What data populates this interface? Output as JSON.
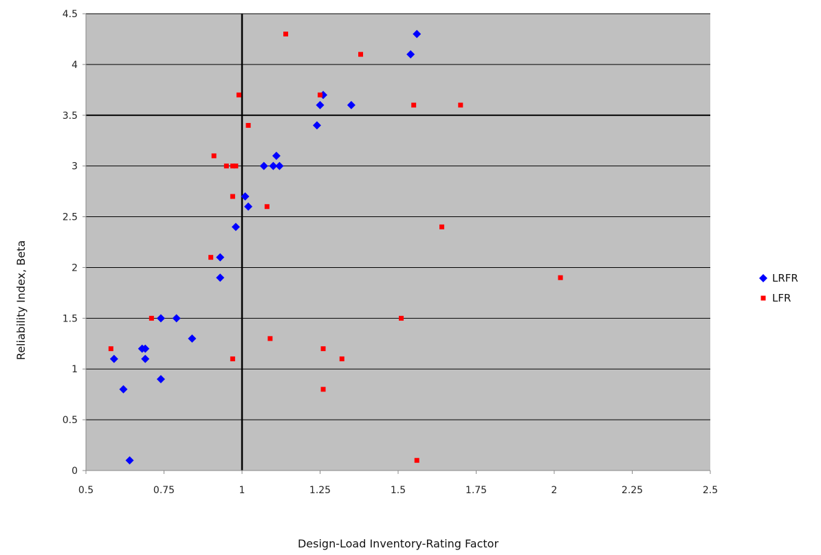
{
  "chart_data": {
    "type": "scatter",
    "title": "",
    "xlabel": "Design-Load Inventory-Rating Factor",
    "ylabel": "Reliability Index, Beta",
    "xlim": [
      0.5,
      2.5
    ],
    "ylim": [
      0,
      4.5
    ],
    "x_ticks": [
      "0.5",
      "0.75",
      "1",
      "1.25",
      "1.5",
      "1.75",
      "2",
      "2.25",
      "2.5"
    ],
    "y_ticks": [
      "0",
      "0.5",
      "1",
      "1.5",
      "2",
      "2.5",
      "3",
      "3.5",
      "4",
      "4.5"
    ],
    "grid": "horizontal",
    "reference_lines": {
      "x": 1,
      "y": 3.5
    },
    "legend_position": "right",
    "plot_background": "#c0c0c0",
    "series": [
      {
        "name": "LRFR",
        "marker": "diamond",
        "color": "#0000ff",
        "points": [
          [
            0.59,
            1.1
          ],
          [
            0.62,
            0.8
          ],
          [
            0.64,
            0.1
          ],
          [
            0.68,
            1.2
          ],
          [
            0.69,
            1.2
          ],
          [
            0.69,
            1.1
          ],
          [
            0.74,
            1.5
          ],
          [
            0.74,
            0.9
          ],
          [
            0.79,
            1.5
          ],
          [
            0.84,
            1.3
          ],
          [
            0.93,
            2.1
          ],
          [
            0.93,
            1.9
          ],
          [
            0.98,
            2.4
          ],
          [
            1.01,
            2.7
          ],
          [
            1.02,
            2.6
          ],
          [
            1.07,
            3.0
          ],
          [
            1.1,
            3.0
          ],
          [
            1.11,
            3.1
          ],
          [
            1.12,
            3.0
          ],
          [
            1.24,
            3.4
          ],
          [
            1.25,
            3.6
          ],
          [
            1.26,
            3.7
          ],
          [
            1.35,
            3.6
          ],
          [
            1.54,
            4.1
          ],
          [
            1.56,
            4.3
          ]
        ]
      },
      {
        "name": "LFR",
        "marker": "square",
        "color": "#ff0000",
        "points": [
          [
            0.58,
            1.2
          ],
          [
            0.71,
            1.5
          ],
          [
            0.9,
            2.1
          ],
          [
            0.91,
            3.1
          ],
          [
            0.95,
            3.0
          ],
          [
            0.97,
            3.0
          ],
          [
            0.98,
            3.0
          ],
          [
            0.97,
            2.7
          ],
          [
            0.97,
            1.1
          ],
          [
            0.99,
            3.7
          ],
          [
            1.02,
            3.4
          ],
          [
            1.08,
            2.6
          ],
          [
            1.09,
            1.3
          ],
          [
            1.14,
            4.3
          ],
          [
            1.25,
            3.7
          ],
          [
            1.26,
            1.2
          ],
          [
            1.26,
            0.8
          ],
          [
            1.32,
            1.1
          ],
          [
            1.38,
            4.1
          ],
          [
            1.51,
            1.5
          ],
          [
            1.55,
            3.6
          ],
          [
            1.56,
            0.1
          ],
          [
            1.64,
            2.4
          ],
          [
            1.7,
            3.6
          ],
          [
            2.02,
            1.9
          ]
        ]
      }
    ]
  }
}
